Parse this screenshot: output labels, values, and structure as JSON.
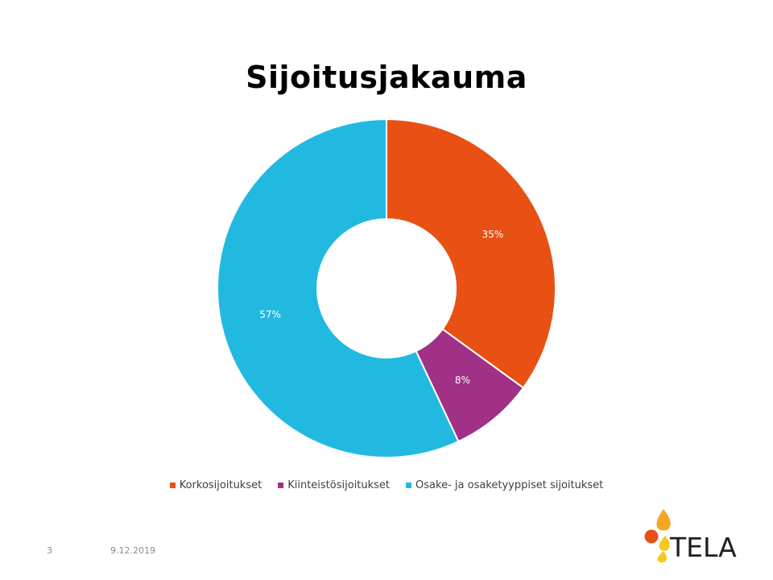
{
  "slide": {
    "page_number": "3",
    "date": "9.12.2019",
    "logo_text": "TELA"
  },
  "chart_data": {
    "type": "pie",
    "variant": "doughnut",
    "title": "Sijoitusjakauma",
    "legend_position": "bottom",
    "slices": [
      {
        "label": "Korkosijoitukset",
        "value": 35,
        "display": "35%",
        "color": "#E85113"
      },
      {
        "label": "Kiinteistösijoitukset",
        "value": 8,
        "display": "8%",
        "color": "#A03186"
      },
      {
        "label": "Osake- ja osaketyyppiset sijoitukset",
        "value": 57,
        "display": "57%",
        "color": "#22B9E1"
      }
    ]
  }
}
